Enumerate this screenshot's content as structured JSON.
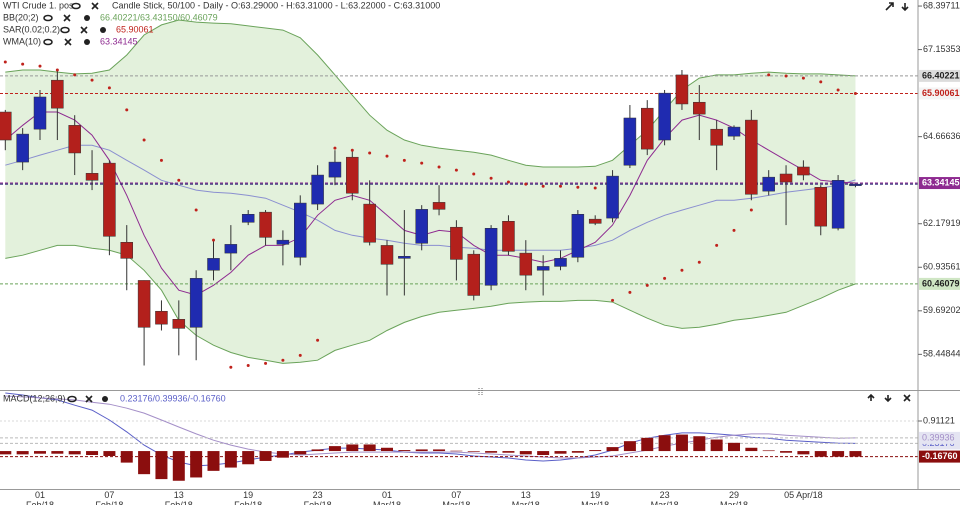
{
  "chart_data": [
    {
      "type": "candlestick",
      "title": "WTI Crude 1. pos",
      "subtitle": "Candle Stick, 50/100 - Daily - O:63.29000 - H:63.31000 - L:63.22000 - C:63.31000",
      "categories": [
        null,
        null,
        "01 Feb/18",
        null,
        null,
        null,
        "07 Feb/18",
        null,
        null,
        null,
        "13 Feb/18",
        null,
        null,
        null,
        "19 Feb/18",
        null,
        null,
        null,
        "23 Feb/18",
        null,
        null,
        null,
        "01 Mar/18",
        null,
        null,
        null,
        "07 Mar/18",
        null,
        null,
        null,
        "13 Mar/18",
        null,
        null,
        null,
        "19 Mar/18",
        null,
        null,
        null,
        "23 Mar/18",
        null,
        null,
        null,
        "29 Mar/18",
        null,
        null,
        null,
        "05 Apr/18",
        null,
        null,
        null
      ],
      "open": [
        65.37,
        63.94,
        64.88,
        66.28,
        64.99,
        63.62,
        63.91,
        61.65,
        60.56,
        59.68,
        59.45,
        59.22,
        60.85,
        61.34,
        62.22,
        62.51,
        61.59,
        61.22,
        62.74,
        63.51,
        64.08,
        62.74,
        61.56,
        61.19,
        61.62,
        62.79,
        62.08,
        61.31,
        60.42,
        62.25,
        61.34,
        60.85,
        60.96,
        61.22,
        62.31,
        62.34,
        63.85,
        65.48,
        64.57,
        66.43,
        65.65,
        64.88,
        64.68,
        65.14,
        63.11,
        63.6,
        63.8,
        63.22,
        62.05,
        63.29
      ],
      "high": [
        65.43,
        64.91,
        66.0,
        66.57,
        65.28,
        64.28,
        63.99,
        62.14,
        60.56,
        59.99,
        59.99,
        60.85,
        61.71,
        62.14,
        62.57,
        62.57,
        61.99,
        62.99,
        63.85,
        64.28,
        64.28,
        63.42,
        61.71,
        62.57,
        62.71,
        63.28,
        62.28,
        61.42,
        62.14,
        62.42,
        61.71,
        61.28,
        61.42,
        62.57,
        62.42,
        63.71,
        65.57,
        65.71,
        66.0,
        66.57,
        66.14,
        65.14,
        64.99,
        65.43,
        63.71,
        63.85,
        63.99,
        63.28,
        63.57,
        63.31
      ],
      "low": [
        64.28,
        63.71,
        64.57,
        64.57,
        63.57,
        63.14,
        61.28,
        60.28,
        58.13,
        59.13,
        58.42,
        58.28,
        60.56,
        60.85,
        62.14,
        61.56,
        60.99,
        60.99,
        62.57,
        63.28,
        62.85,
        61.56,
        60.13,
        60.13,
        61.42,
        62.42,
        60.56,
        59.99,
        60.28,
        61.28,
        60.28,
        60.13,
        60.85,
        61.08,
        62.14,
        62.22,
        63.77,
        64.14,
        64.42,
        65.43,
        64.57,
        63.71,
        64.57,
        62.85,
        62.99,
        62.14,
        63.42,
        61.85,
        61.99,
        63.22
      ],
      "close": [
        64.57,
        64.74,
        65.8,
        65.48,
        64.2,
        63.42,
        61.82,
        61.19,
        59.22,
        59.31,
        59.19,
        60.62,
        61.19,
        61.59,
        62.45,
        61.79,
        61.71,
        62.77,
        63.57,
        63.94,
        63.05,
        61.65,
        61.02,
        61.25,
        62.59,
        62.59,
        61.16,
        60.13,
        62.05,
        61.39,
        60.71,
        60.96,
        61.19,
        62.45,
        62.19,
        63.54,
        65.2,
        64.31,
        65.91,
        65.6,
        65.31,
        64.42,
        64.94,
        63.02,
        63.51,
        63.37,
        63.57,
        62.11,
        63.42,
        63.31
      ],
      "up_color": "#1f2bb0",
      "down_color": "#b3201c",
      "bands": {
        "name": "BB(20;2)",
        "legend_values": "66.40221/63.43150/60.46079",
        "color": "#6aa35a",
        "fill": "#e3f1dc",
        "middle_color": "#8a8fd0",
        "upper": [
          66.51,
          66.57,
          66.57,
          66.51,
          66.46,
          66.48,
          66.57,
          67.0,
          67.57,
          67.86,
          68.0,
          67.94,
          67.91,
          67.89,
          67.83,
          67.77,
          67.71,
          67.49,
          67.0,
          66.43,
          65.85,
          65.28,
          64.85,
          64.57,
          64.42,
          64.34,
          64.28,
          64.22,
          64.14,
          63.99,
          63.85,
          63.8,
          63.8,
          63.8,
          63.82,
          63.99,
          64.42,
          64.85,
          65.43,
          66.0,
          66.34,
          66.43,
          66.43,
          66.48,
          66.51,
          66.48,
          66.46,
          66.46,
          66.43,
          66.40221
        ],
        "middle": [
          63.85,
          63.99,
          64.14,
          64.28,
          64.42,
          64.42,
          64.28,
          63.99,
          63.71,
          63.42,
          63.28,
          63.14,
          63.08,
          63.05,
          62.99,
          62.91,
          62.71,
          62.51,
          62.28,
          61.99,
          61.85,
          61.77,
          61.71,
          61.62,
          61.56,
          61.56,
          61.51,
          61.48,
          61.42,
          61.42,
          61.42,
          61.42,
          61.42,
          61.48,
          61.56,
          61.71,
          61.99,
          62.22,
          62.42,
          62.57,
          62.71,
          62.85,
          62.85,
          62.91,
          62.99,
          63.08,
          63.14,
          63.2,
          63.28,
          63.4315
        ],
        "lower": [
          61.19,
          61.28,
          61.42,
          61.56,
          61.56,
          61.48,
          61.42,
          61.28,
          60.85,
          60.28,
          59.42,
          58.99,
          58.71,
          58.5,
          58.36,
          58.28,
          58.19,
          58.22,
          58.28,
          58.56,
          58.71,
          58.85,
          59.13,
          59.36,
          59.53,
          59.65,
          59.71,
          59.76,
          59.82,
          59.91,
          59.94,
          59.96,
          59.96,
          59.99,
          59.99,
          59.94,
          59.71,
          59.48,
          59.28,
          59.19,
          59.22,
          59.31,
          59.42,
          59.48,
          59.56,
          59.65,
          59.85,
          60.05,
          60.28,
          60.46079
        ]
      },
      "series": [
        {
          "name": "SAR(0.02;0.2)",
          "color": "#c0221c",
          "style": "dots",
          "values": [
            66.8,
            66.74,
            66.68,
            66.57,
            66.43,
            66.28,
            66.06,
            65.43,
            64.57,
            63.99,
            63.42,
            62.57,
            61.71,
            58.08,
            58.13,
            58.19,
            58.28,
            58.42,
            58.85,
            64.34,
            64.28,
            64.2,
            64.11,
            63.99,
            63.91,
            63.8,
            63.71,
            63.6,
            63.48,
            63.37,
            63.31,
            63.25,
            63.25,
            63.22,
            63.2,
            59.99,
            60.22,
            60.42,
            60.62,
            60.85,
            61.08,
            61.56,
            61.99,
            62.57,
            66.43,
            66.4,
            66.34,
            66.23,
            66.0,
            65.90061
          ]
        },
        {
          "name": "WMA(10)",
          "color": "#8e2a90",
          "style": "line",
          "values": [
            64.57,
            64.99,
            65.37,
            65.37,
            65.14,
            64.71,
            63.99,
            62.99,
            61.85,
            60.91,
            60.28,
            60.14,
            60.42,
            60.79,
            61.28,
            61.56,
            61.56,
            61.79,
            62.42,
            62.85,
            62.99,
            62.85,
            62.42,
            61.99,
            61.85,
            61.99,
            61.94,
            61.56,
            61.28,
            61.28,
            61.19,
            61.08,
            61.19,
            61.42,
            61.65,
            62.14,
            62.99,
            63.99,
            64.62,
            65.14,
            65.28,
            65.14,
            64.91,
            64.57,
            64.28,
            63.99,
            63.71,
            63.42,
            63.37,
            63.34145
          ]
        }
      ],
      "ylim": [
        57.43,
        68.57
      ],
      "yticks": [
        68.39711,
        67.15353,
        64.66636,
        62.17919,
        60.93561,
        59.69202,
        58.44844
      ]
    },
    {
      "type": "macd",
      "title": "MACD(12;26;9)",
      "legend_values": "0.23176/0.39936/-0.16760",
      "series": [
        {
          "color": "#5a5fc8",
          "style": "line",
          "values": [
            1.76,
            1.7,
            1.61,
            1.55,
            1.39,
            1.24,
            0.94,
            0.58,
            0.18,
            -0.12,
            -0.33,
            -0.45,
            -0.42,
            -0.36,
            -0.27,
            -0.18,
            -0.12,
            -0.03,
            0.03,
            0.09,
            0.09,
            0.06,
            0.03,
            -0.03,
            -0.06,
            -0.06,
            -0.09,
            -0.15,
            -0.18,
            -0.21,
            -0.27,
            -0.3,
            -0.27,
            -0.21,
            -0.12,
            0.03,
            0.24,
            0.39,
            0.48,
            0.55,
            0.55,
            0.52,
            0.48,
            0.42,
            0.39,
            0.33,
            0.3,
            0.27,
            0.24,
            0.23176
          ]
        },
        {
          "color": "#a48fc8",
          "style": "line",
          "values": [
            1.67,
            1.64,
            1.61,
            1.58,
            1.55,
            1.48,
            1.42,
            1.3,
            1.15,
            0.94,
            0.73,
            0.52,
            0.33,
            0.18,
            0.06,
            -0.03,
            -0.09,
            -0.12,
            -0.09,
            -0.06,
            -0.03,
            -0.03,
            -0.03,
            -0.03,
            -0.03,
            -0.03,
            -0.03,
            -0.06,
            -0.09,
            -0.12,
            -0.15,
            -0.18,
            -0.21,
            -0.21,
            -0.18,
            -0.15,
            -0.06,
            0.03,
            0.15,
            0.24,
            0.33,
            0.42,
            0.48,
            0.52,
            0.52,
            0.48,
            0.45,
            0.42,
            0.39,
            0.39936
          ]
        },
        {
          "color": "#8b0e0e",
          "style": "bar",
          "values": [
            -0.1,
            -0.1,
            -0.08,
            -0.08,
            -0.1,
            -0.12,
            -0.15,
            -0.35,
            -0.7,
            -0.85,
            -0.9,
            -0.8,
            -0.6,
            -0.5,
            -0.4,
            -0.3,
            -0.2,
            -0.1,
            0.05,
            0.15,
            0.2,
            0.2,
            0.1,
            0.03,
            0.05,
            0.05,
            0.01,
            -0.02,
            -0.05,
            -0.05,
            -0.1,
            -0.12,
            -0.08,
            -0.05,
            0.03,
            0.12,
            0.3,
            0.4,
            0.48,
            0.5,
            0.45,
            0.35,
            0.25,
            0.1,
            0.02,
            -0.05,
            -0.1,
            -0.17,
            -0.17,
            -0.1676
          ],
          "value_labels": [
            null,
            null,
            null,
            null,
            null,
            null,
            null,
            null,
            null,
            null,
            null,
            null,
            null,
            null,
            null,
            null,
            null,
            null,
            null,
            null,
            null,
            null,
            null,
            null,
            null,
            null,
            null,
            null,
            null,
            null,
            null,
            null,
            null,
            null,
            null,
            null,
            null,
            null,
            null,
            null,
            null,
            null,
            null,
            null,
            null,
            null,
            null,
            null,
            null,
            "-0.16760"
          ]
        }
      ],
      "ylim": [
        -1.18,
        1.79
      ],
      "yticks": [
        0.91121
      ]
    }
  ]
}
